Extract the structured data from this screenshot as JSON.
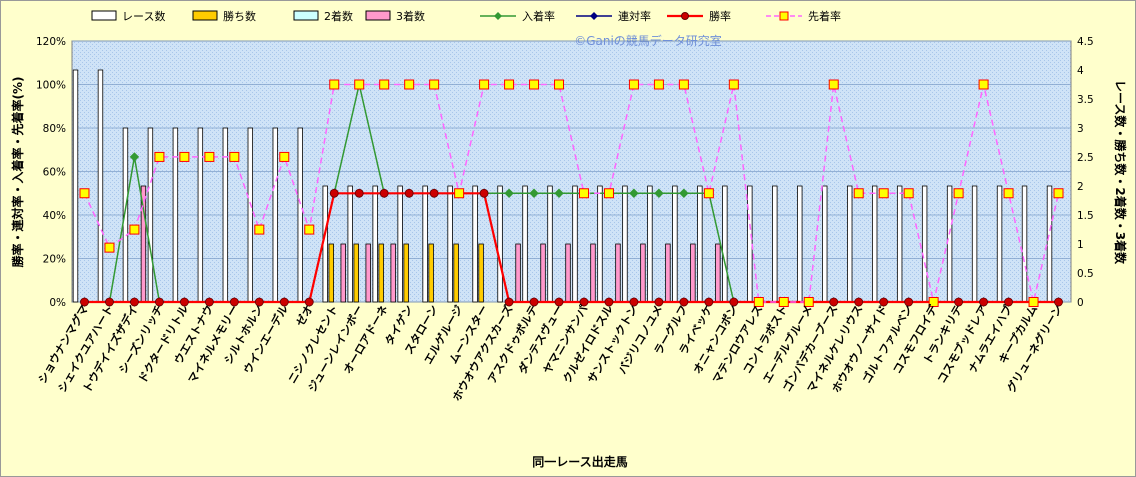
{
  "chart_data": {
    "type": "bar",
    "title": "",
    "watermark": "©Ganiの競馬データ研究室",
    "xlabel": "同一レース出走馬",
    "ylabel_left": "勝率・連対率・入着率・先着率(%)",
    "ylabel_right": "レース数・勝ち数・2着数・3着数",
    "ylim_left": [
      0,
      120
    ],
    "ylim_right": [
      0,
      4.5
    ],
    "yticks_left": [
      "0%",
      "20%",
      "40%",
      "60%",
      "80%",
      "100%",
      "120%"
    ],
    "yticks_right": [
      "0",
      "0.5",
      "1",
      "1.5",
      "2",
      "2.5",
      "3",
      "3.5",
      "4",
      "4.5"
    ],
    "grid": true,
    "legend_position": "top",
    "categories": [
      "ショウナンマグマ",
      "シェイクユアハート",
      "トウデイイズザデイ",
      "シーズンリッチ",
      "ドクタードリトル",
      "ウエストナウ",
      "マイネルメモリー",
      "シルトホルン",
      "ウインエーデル",
      "ゼオ",
      "ニシノクレセント",
      "ジューンレインボー",
      "オーロアドーネ",
      "タイゲン",
      "スタローン",
      "エルゲルージ",
      "ムーンスター",
      "ホウオウアクスカーズ",
      "アスクドゥポルテ",
      "ダンテスヴュー",
      "ヤマニンサンパ",
      "クルゼイロドスル",
      "サンストックトン",
      "バジリコノユメ",
      "ラーグルフ",
      "ライベッケ",
      "オニャンコポン",
      "マテンロウアレス",
      "コントラポスト",
      "エーデルブルーメ",
      "ゴンバデカーブース",
      "マイネルケレリウス",
      "ホウオウノーサイド",
      "ゴルトファルベン",
      "コスモフロイデ",
      "トランキリテ",
      "コスモブッドレア",
      "ナムラエイハブ",
      "キープカルム",
      "グリューネグリーン"
    ],
    "series": [
      {
        "name": "レース数",
        "kind": "bar",
        "axis": "right",
        "color": "#ffffff",
        "values": [
          4,
          4,
          3,
          3,
          3,
          3,
          3,
          3,
          3,
          3,
          2,
          2,
          2,
          2,
          2,
          2,
          2,
          2,
          2,
          2,
          2,
          2,
          2,
          2,
          2,
          2,
          2,
          2,
          2,
          2,
          2,
          2,
          2,
          2,
          2,
          2,
          2,
          2,
          2,
          2
        ]
      },
      {
        "name": "勝ち数",
        "kind": "bar",
        "axis": "right",
        "color": "#ffcc00",
        "values": [
          0,
          0,
          0,
          0,
          0,
          0,
          0,
          0,
          0,
          0,
          1,
          1,
          1,
          1,
          1,
          1,
          1,
          0,
          0,
          0,
          0,
          0,
          0,
          0,
          0,
          0,
          0,
          0,
          0,
          0,
          0,
          0,
          0,
          0,
          0,
          0,
          0,
          0,
          0,
          0
        ]
      },
      {
        "name": "2着数",
        "kind": "bar",
        "axis": "right",
        "color": "#ccffff",
        "values": [
          0,
          0,
          0,
          0,
          0,
          0,
          0,
          0,
          0,
          0,
          0,
          0,
          0,
          0,
          0,
          0,
          0,
          0,
          0,
          0,
          0,
          0,
          0,
          0,
          0,
          0,
          0,
          0,
          0,
          0,
          0,
          0,
          0,
          0,
          0,
          0,
          0,
          0,
          0,
          0
        ]
      },
      {
        "name": "3着数",
        "kind": "bar",
        "axis": "right",
        "color": "#ff99cc",
        "values": [
          0,
          0,
          2,
          0,
          0,
          0,
          0,
          0,
          0,
          0,
          1,
          1,
          1,
          0,
          0,
          0,
          0,
          1,
          1,
          1,
          1,
          1,
          1,
          1,
          1,
          1,
          0,
          0,
          0,
          0,
          0,
          0,
          0,
          0,
          0,
          0,
          0,
          0,
          0,
          0
        ]
      },
      {
        "name": "入着率",
        "kind": "line",
        "axis": "left",
        "color": "#339933",
        "marker": "diamond",
        "values": [
          0,
          0,
          66.7,
          0,
          0,
          0,
          0,
          0,
          0,
          0,
          50,
          100,
          50,
          50,
          50,
          50,
          50,
          50,
          50,
          50,
          50,
          50,
          50,
          50,
          50,
          50,
          0,
          0,
          0,
          0,
          0,
          0,
          0,
          0,
          0,
          0,
          0,
          0,
          0,
          0
        ]
      },
      {
        "name": "連対率",
        "kind": "line",
        "axis": "left",
        "color": "#000080",
        "marker": "diamond",
        "values": [
          0,
          0,
          0,
          0,
          0,
          0,
          0,
          0,
          0,
          0,
          50,
          50,
          50,
          50,
          50,
          50,
          50,
          0,
          0,
          0,
          0,
          0,
          0,
          0,
          0,
          0,
          0,
          0,
          0,
          0,
          0,
          0,
          0,
          0,
          0,
          0,
          0,
          0,
          0,
          0
        ]
      },
      {
        "name": "勝率",
        "kind": "line",
        "axis": "left",
        "color": "#ff0000",
        "marker": "circle",
        "values": [
          0,
          0,
          0,
          0,
          0,
          0,
          0,
          0,
          0,
          0,
          50,
          50,
          50,
          50,
          50,
          50,
          50,
          0,
          0,
          0,
          0,
          0,
          0,
          0,
          0,
          0,
          0,
          0,
          0,
          0,
          0,
          0,
          0,
          0,
          0,
          0,
          0,
          0,
          0,
          0
        ]
      },
      {
        "name": "先着率",
        "kind": "line",
        "axis": "left",
        "color": "#ff66ff",
        "marker": "square",
        "dashed": true,
        "values": [
          50,
          25,
          33.3,
          66.7,
          66.7,
          66.7,
          66.7,
          33.3,
          66.7,
          33.3,
          100,
          100,
          100,
          100,
          100,
          50,
          100,
          100,
          100,
          100,
          50,
          50,
          100,
          100,
          100,
          50,
          100,
          0,
          0,
          0,
          100,
          50,
          50,
          50,
          0,
          50,
          100,
          50,
          0,
          50
        ]
      }
    ]
  }
}
